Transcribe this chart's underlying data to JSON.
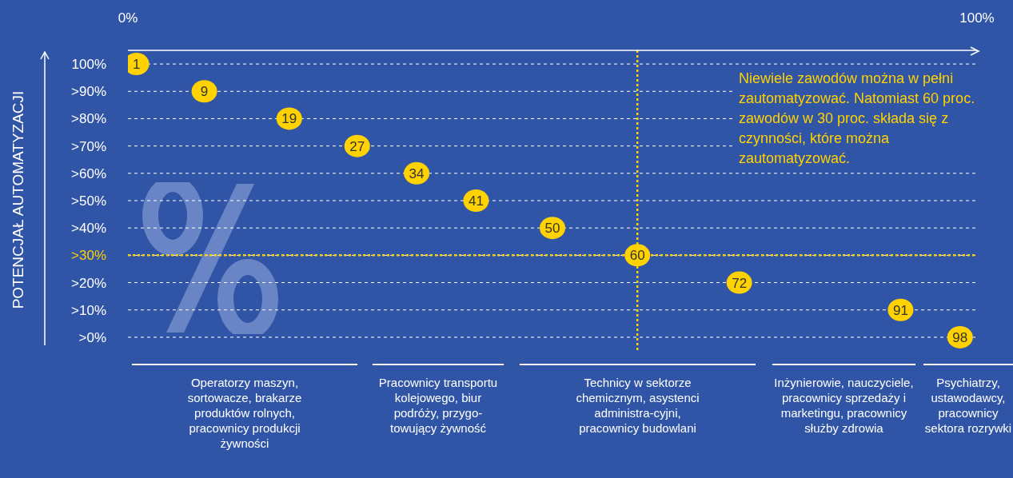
{
  "chart_data": {
    "type": "scatter",
    "orientation": "horizontal",
    "ylabel": "POTENCJAŁ AUTOMATYZACJI",
    "categories": [
      "100%",
      ">90%",
      ">80%",
      ">70%",
      ">60%",
      ">50%",
      ">40%",
      ">30%",
      ">20%",
      ">10%",
      ">0%"
    ],
    "values": [
      1,
      9,
      19,
      27,
      34,
      41,
      50,
      60,
      72,
      91,
      98
    ],
    "data_labels": true,
    "color": "#ffd200",
    "xlim": [
      0,
      100
    ],
    "xticks": [
      {
        "value": 0,
        "label": "0%"
      },
      {
        "value": 100,
        "label": "100%"
      }
    ],
    "grid": "y",
    "line_style": "dashed",
    "marker": "circle",
    "legend": false,
    "ref_lines": [
      {
        "axis": "y",
        "value": ">30%",
        "color": "#ffd200",
        "line_style": "dotted"
      },
      {
        "axis": "x",
        "value": 60,
        "color": "#ffd200",
        "line_style": "dotted"
      }
    ],
    "annotations": [
      "Niewiele zawodów można w pełni zautomatyzować. Natomiast 60 proc. zawodów w 30 proc. składa się z czynności, które można zautomatyzować.",
      "Operatorzy maszyn, sortowacze, brakarze produktów rolnych, pracownicy produkcji żywności",
      "Pracownicy transportu kolejowego, biur podróży, przygo-towujący żywność",
      "Technicy w sektorze chemicznym, asystenci administra-cyjni, pracownicy budowlani",
      "Inżynierowie, nauczyciele, pracownicy sprzedaży i marketingu, pracownicy służby zdrowia",
      "Psychiatrzy, ustawodawcy, pracownicy sektora rozrywki"
    ]
  }
}
